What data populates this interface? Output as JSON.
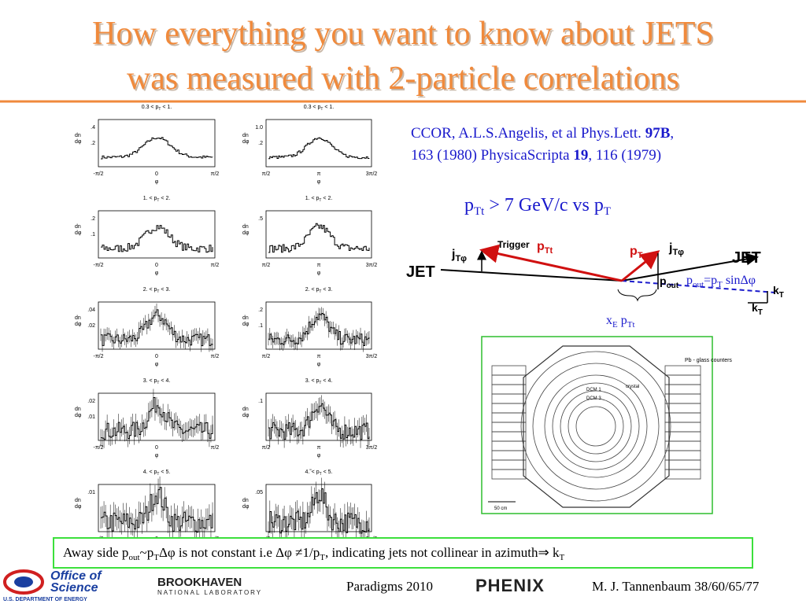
{
  "header": {
    "title": [
      "How everything you want to know about JETS",
      "was measured with 2-particle correlations"
    ]
  },
  "plots": {
    "y_label_top": "dn",
    "y_label_bottom": "dφ",
    "x_label": "φ",
    "left_xticks": [
      "-π/2",
      "0",
      "π/2"
    ],
    "right_xticks": [
      "π/2",
      "π",
      "3π/2"
    ],
    "left": [
      {
        "title": [
          "0.3 < p",
          "T",
          " < 1."
        ],
        "yticks": [
          ".4",
          ".2"
        ]
      },
      {
        "title": [
          "1. < p",
          "T",
          " < 2."
        ],
        "yticks": [
          ".2",
          ".1"
        ]
      },
      {
        "title": [
          "2. < p",
          "T",
          " < 3."
        ],
        "yticks": [
          ".04",
          ".02"
        ]
      },
      {
        "title": [
          "3. < p",
          "T",
          " < 4."
        ],
        "yticks": [
          ".02",
          ".01"
        ]
      },
      {
        "title": [
          "4. < p",
          "T",
          " < 5."
        ],
        "yticks": [
          ".01"
        ]
      }
    ],
    "right": [
      {
        "title": [
          "0.3 < p",
          "T",
          " < 1."
        ],
        "yticks": [
          "1.0",
          ".2"
        ]
      },
      {
        "title": [
          "1. < p",
          "T",
          " < 2."
        ],
        "yticks": [
          ".5"
        ]
      },
      {
        "title": [
          "2. < p",
          "T",
          " < 3."
        ],
        "yticks": [
          ".2",
          ".1"
        ]
      },
      {
        "title": [
          "3. < p",
          "T",
          " < 4."
        ],
        "yticks": [
          ".1"
        ]
      },
      {
        "title": [
          "4.˜< p",
          "T",
          " < 5."
        ],
        "yticks": [
          ".05"
        ]
      }
    ]
  },
  "citation": [
    "CCOR, A.L.S.Angelis, et al Phys.Lett. ",
    "97B",
    ", 163 (1980)   PhysicaScripta ",
    "19",
    ", 116 (1979)"
  ],
  "selection": [
    "p",
    "Tt",
    " > 7 GeV/c vs p",
    "T"
  ],
  "diagram": {
    "jet_left": "JET",
    "jet_right": "JET",
    "trigger": "Trigger",
    "ptt": [
      "p",
      "Tt"
    ],
    "jt_left": [
      "j",
      "Tφ"
    ],
    "pt": [
      "p",
      "T"
    ],
    "jt_right": [
      "j",
      "Tφ"
    ],
    "pout": [
      "p",
      "out"
    ],
    "kt1": [
      "k",
      "T"
    ],
    "kt2": [
      "k",
      "T"
    ],
    "formula": [
      "p",
      "out",
      "=p",
      "T",
      " sinΔφ"
    ],
    "xe": [
      "x",
      "E",
      " p",
      "Tt"
    ]
  },
  "detector": {
    "pb": "Pb - glass counters",
    "crystal": "crystal",
    "dcm1": "DCM 1",
    "dcm3": "DCM 3",
    "scale": "50 cm"
  },
  "conclusion": [
    "Away side p",
    "out",
    "~p",
    "T",
    "Δφ is not constant i.e Δφ ≠1/p",
    "T",
    ", indicating jets not collinear in azimuth⇒ k",
    "T"
  ],
  "footer": {
    "office": "Office of",
    "science": "Science",
    "doe": "U.S. DEPARTMENT OF ENERGY",
    "bnl": "BROOKHAVEN",
    "bnl_sub": "NATIONAL LABORATORY",
    "conference": "Paradigms 2010",
    "phenix": "PHENIX",
    "author": "M. J. Tannenbaum   38/60/65/77"
  }
}
